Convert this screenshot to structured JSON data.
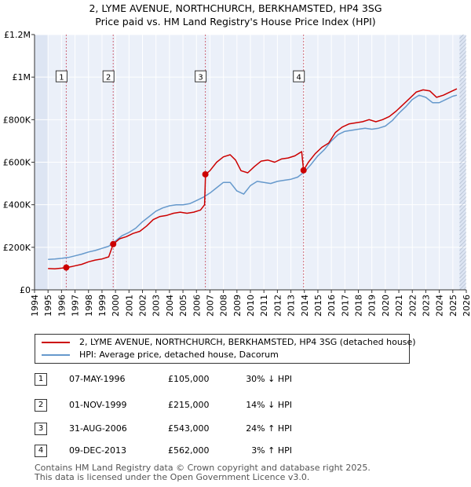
{
  "chart_data": {
    "type": "line",
    "title": "2, LYME AVENUE, NORTHCHURCH, BERKHAMSTED, HP4 3SG",
    "subtitle": "Price paid vs. HM Land Registry's House Price Index (HPI)",
    "xlabel": "",
    "ylabel": "",
    "xlim": [
      1994,
      2026
    ],
    "ylim": [
      0,
      1200000
    ],
    "x_ticks": [
      "1994",
      "1995",
      "1996",
      "1997",
      "1998",
      "1999",
      "2000",
      "2001",
      "2002",
      "2003",
      "2004",
      "2005",
      "2006",
      "2007",
      "2008",
      "2009",
      "2010",
      "2011",
      "2012",
      "2013",
      "2014",
      "2015",
      "2016",
      "2017",
      "2018",
      "2019",
      "2020",
      "2021",
      "2022",
      "2023",
      "2024",
      "2025",
      "2026"
    ],
    "y_ticks": [
      {
        "value": 0,
        "label": "£0"
      },
      {
        "value": 200000,
        "label": "£200K"
      },
      {
        "value": 400000,
        "label": "£400K"
      },
      {
        "value": 600000,
        "label": "£600K"
      },
      {
        "value": 800000,
        "label": "£800K"
      },
      {
        "value": 1000000,
        "label": "£1M"
      },
      {
        "value": 1200000,
        "label": "£1.2M"
      }
    ],
    "grid": true,
    "data_start": 1995.0,
    "data_end": 2025.5,
    "series": [
      {
        "name": "2, LYME AVENUE, NORTHCHURCH, BERKHAMSTED, HP4 3SG (detached house)",
        "color": "#cc0000",
        "points": [
          [
            1995.0,
            100000
          ],
          [
            1995.5,
            99000
          ],
          [
            1996.0,
            102000
          ],
          [
            1996.35,
            105000
          ],
          [
            1996.8,
            110000
          ],
          [
            1997.5,
            120000
          ],
          [
            1998.0,
            132000
          ],
          [
            1998.5,
            140000
          ],
          [
            1999.0,
            145000
          ],
          [
            1999.5,
            155000
          ],
          [
            1999.83,
            215000
          ],
          [
            2000.3,
            240000
          ],
          [
            2000.8,
            250000
          ],
          [
            2001.3,
            265000
          ],
          [
            2001.8,
            275000
          ],
          [
            2002.3,
            300000
          ],
          [
            2002.8,
            330000
          ],
          [
            2003.3,
            345000
          ],
          [
            2003.8,
            350000
          ],
          [
            2004.3,
            360000
          ],
          [
            2004.8,
            365000
          ],
          [
            2005.3,
            360000
          ],
          [
            2005.8,
            365000
          ],
          [
            2006.3,
            375000
          ],
          [
            2006.6,
            400000
          ],
          [
            2006.67,
            543000
          ],
          [
            2007.0,
            560000
          ],
          [
            2007.5,
            600000
          ],
          [
            2008.0,
            625000
          ],
          [
            2008.5,
            635000
          ],
          [
            2008.9,
            610000
          ],
          [
            2009.3,
            560000
          ],
          [
            2009.8,
            550000
          ],
          [
            2010.3,
            580000
          ],
          [
            2010.8,
            605000
          ],
          [
            2011.3,
            610000
          ],
          [
            2011.8,
            600000
          ],
          [
            2012.3,
            615000
          ],
          [
            2012.8,
            620000
          ],
          [
            2013.3,
            630000
          ],
          [
            2013.8,
            650000
          ],
          [
            2013.94,
            562000
          ],
          [
            2014.3,
            600000
          ],
          [
            2014.8,
            640000
          ],
          [
            2015.3,
            670000
          ],
          [
            2015.8,
            690000
          ],
          [
            2016.3,
            740000
          ],
          [
            2016.8,
            765000
          ],
          [
            2017.3,
            780000
          ],
          [
            2017.8,
            785000
          ],
          [
            2018.3,
            790000
          ],
          [
            2018.8,
            800000
          ],
          [
            2019.3,
            790000
          ],
          [
            2019.8,
            800000
          ],
          [
            2020.3,
            815000
          ],
          [
            2020.8,
            840000
          ],
          [
            2021.3,
            870000
          ],
          [
            2021.8,
            900000
          ],
          [
            2022.3,
            930000
          ],
          [
            2022.8,
            940000
          ],
          [
            2023.3,
            935000
          ],
          [
            2023.8,
            905000
          ],
          [
            2024.3,
            915000
          ],
          [
            2024.8,
            930000
          ],
          [
            2025.3,
            945000
          ]
        ]
      },
      {
        "name": "HPI: Average price, detached house, Dacorum",
        "color": "#6699cc",
        "points": [
          [
            1995.0,
            143000
          ],
          [
            1995.5,
            145000
          ],
          [
            1996.0,
            148000
          ],
          [
            1996.5,
            152000
          ],
          [
            1997.0,
            160000
          ],
          [
            1997.5,
            168000
          ],
          [
            1998.0,
            178000
          ],
          [
            1998.5,
            185000
          ],
          [
            1999.0,
            195000
          ],
          [
            1999.5,
            205000
          ],
          [
            2000.0,
            230000
          ],
          [
            2000.5,
            255000
          ],
          [
            2001.0,
            270000
          ],
          [
            2001.5,
            290000
          ],
          [
            2002.0,
            320000
          ],
          [
            2002.5,
            345000
          ],
          [
            2003.0,
            370000
          ],
          [
            2003.5,
            385000
          ],
          [
            2004.0,
            395000
          ],
          [
            2004.5,
            400000
          ],
          [
            2005.0,
            400000
          ],
          [
            2005.5,
            405000
          ],
          [
            2006.0,
            420000
          ],
          [
            2006.5,
            435000
          ],
          [
            2007.0,
            455000
          ],
          [
            2007.5,
            480000
          ],
          [
            2008.0,
            505000
          ],
          [
            2008.5,
            505000
          ],
          [
            2009.0,
            465000
          ],
          [
            2009.5,
            450000
          ],
          [
            2010.0,
            490000
          ],
          [
            2010.5,
            510000
          ],
          [
            2011.0,
            505000
          ],
          [
            2011.5,
            500000
          ],
          [
            2012.0,
            510000
          ],
          [
            2012.5,
            515000
          ],
          [
            2013.0,
            520000
          ],
          [
            2013.5,
            530000
          ],
          [
            2014.0,
            555000
          ],
          [
            2014.5,
            590000
          ],
          [
            2015.0,
            630000
          ],
          [
            2015.5,
            660000
          ],
          [
            2016.0,
            700000
          ],
          [
            2016.5,
            730000
          ],
          [
            2017.0,
            745000
          ],
          [
            2017.5,
            750000
          ],
          [
            2018.0,
            755000
          ],
          [
            2018.5,
            760000
          ],
          [
            2019.0,
            755000
          ],
          [
            2019.5,
            760000
          ],
          [
            2020.0,
            770000
          ],
          [
            2020.5,
            795000
          ],
          [
            2021.0,
            830000
          ],
          [
            2021.5,
            860000
          ],
          [
            2022.0,
            895000
          ],
          [
            2022.5,
            915000
          ],
          [
            2023.0,
            905000
          ],
          [
            2023.5,
            880000
          ],
          [
            2024.0,
            880000
          ],
          [
            2024.5,
            895000
          ],
          [
            2025.0,
            910000
          ],
          [
            2025.3,
            915000
          ]
        ]
      }
    ],
    "sales": [
      {
        "num": "1",
        "x": 1996.35,
        "price_value": 105000
      },
      {
        "num": "2",
        "x": 1999.83,
        "price_value": 215000
      },
      {
        "num": "3",
        "x": 2006.66,
        "price_value": 543000
      },
      {
        "num": "4",
        "x": 2013.94,
        "price_value": 562000
      }
    ],
    "box_value": 1000000
  },
  "legend": {
    "items": [
      {
        "label": "2, LYME AVENUE, NORTHCHURCH, BERKHAMSTED, HP4 3SG (detached house)",
        "color": "#cc0000"
      },
      {
        "label": "HPI: Average price, detached house, Dacorum",
        "color": "#6699cc"
      }
    ]
  },
  "sales_table": [
    {
      "num": "1",
      "date": "07-MAY-1996",
      "price": "£105,000",
      "hpi": "30% ↓ HPI"
    },
    {
      "num": "2",
      "date": "01-NOV-1999",
      "price": "£215,000",
      "hpi": "14% ↓ HPI"
    },
    {
      "num": "3",
      "date": "31-AUG-2006",
      "price": "£543,000",
      "hpi": "24% ↑ HPI"
    },
    {
      "num": "4",
      "date": "09-DEC-2013",
      "price": "£562,000",
      "hpi": "3% ↑ HPI"
    }
  ],
  "footer": {
    "line1": "Contains HM Land Registry data © Crown copyright and database right 2025.",
    "line2": "This data is licensed under the Open Government Licence v3.0."
  },
  "colors": {
    "plot_bg": "#ebf0f9",
    "grid": "#ffffff",
    "shade": "#dde5f3",
    "guide": "#cc6677"
  }
}
